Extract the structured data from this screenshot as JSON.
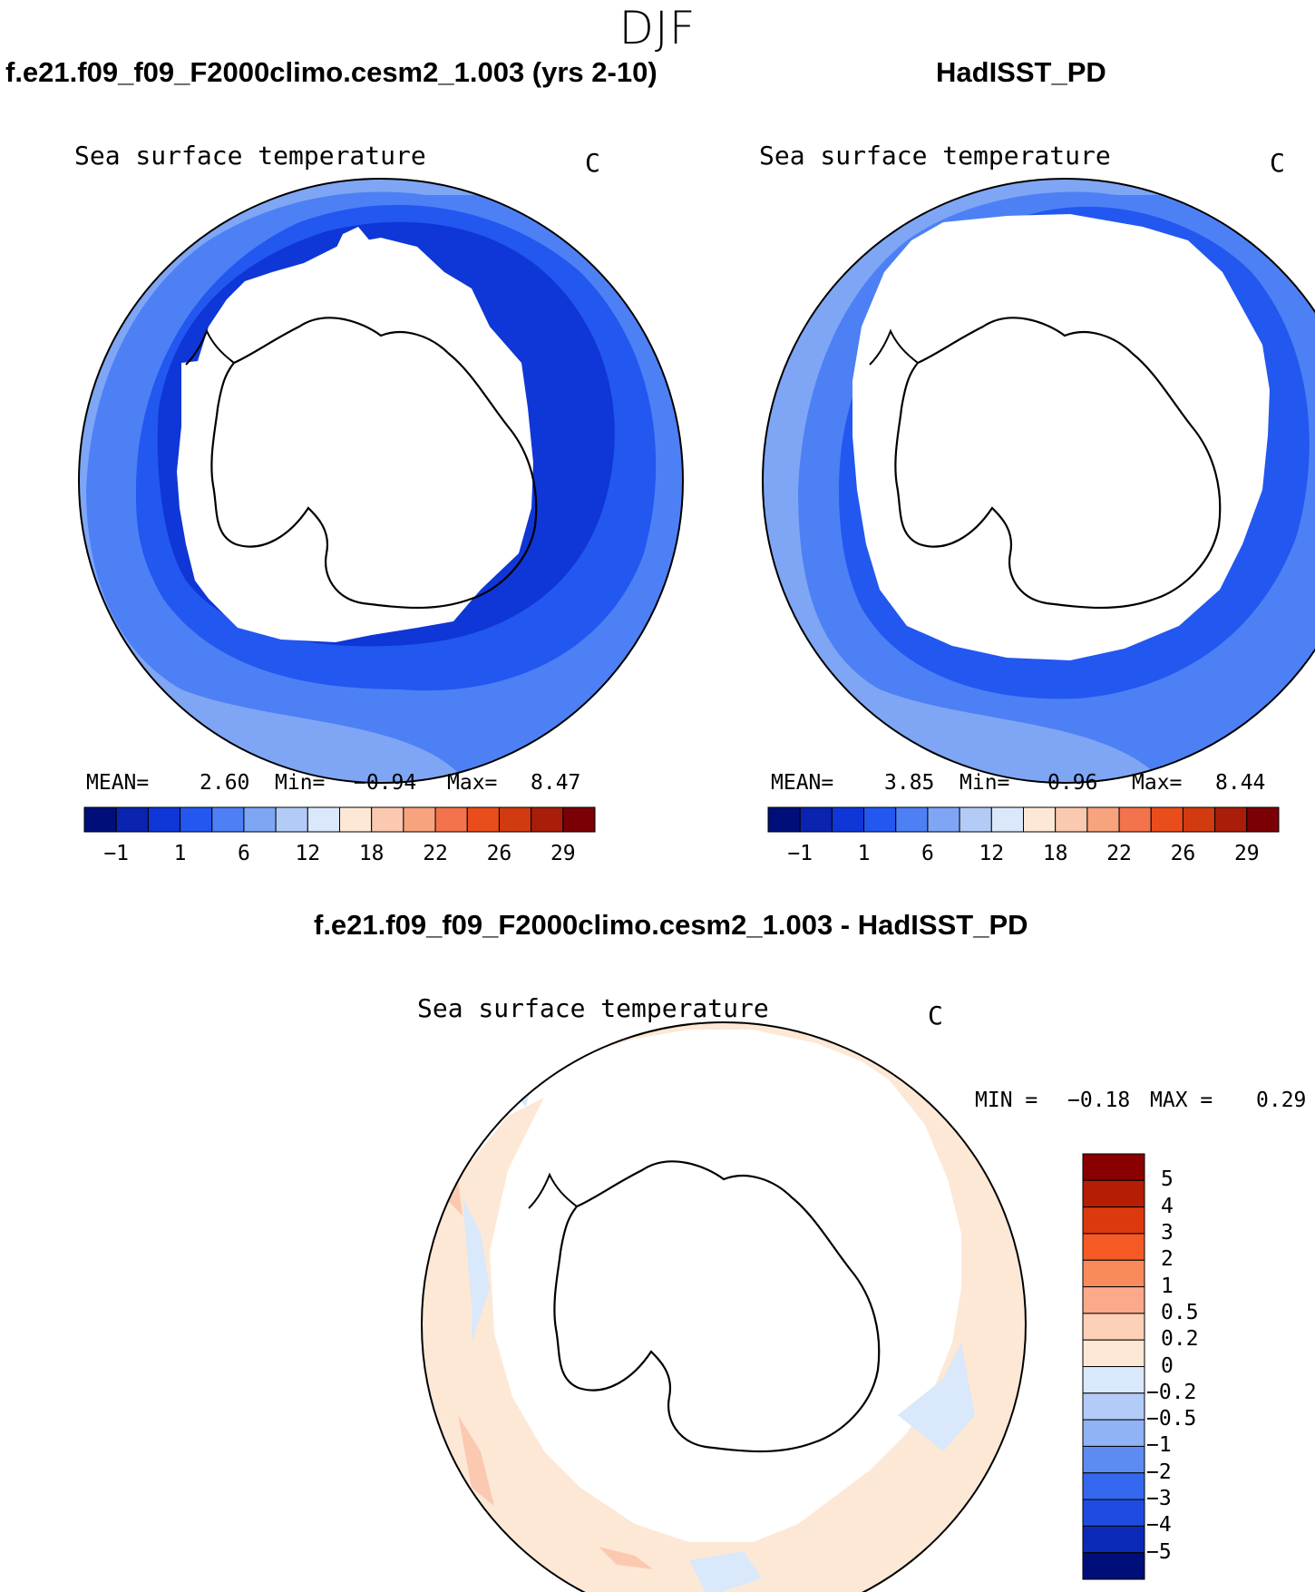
{
  "season": "DJF",
  "panels": {
    "test": {
      "title": "f.e21.f09_f09_F2000climo.cesm2_1.003 (yrs 2-10)",
      "variable": "Sea surface temperature",
      "units": "C",
      "stats": {
        "mean_label": "MEAN=",
        "mean": "2.60",
        "min_label": "Min=",
        "min": "−0.94",
        "max_label": "Max=",
        "max": "8.47"
      }
    },
    "obs": {
      "title": "HadISST_PD",
      "variable": "Sea surface temperature",
      "units": "C",
      "stats": {
        "mean_label": "MEAN=",
        "mean": "3.85",
        "min_label": "Min=",
        "min": "0.96",
        "max_label": "Max=",
        "max": "8.44"
      }
    },
    "diff": {
      "title": "f.e21.f09_f09_F2000climo.cesm2_1.003 - HadISST_PD",
      "variable": "Sea surface temperature",
      "units": "C",
      "stats": {
        "min_label": "MIN =",
        "min": "−0.18",
        "max_label": "MAX =",
        "max": "0.29"
      }
    }
  },
  "colorbars": {
    "sst": {
      "colors": [
        "#000e7a",
        "#0a24b0",
        "#0f36d6",
        "#2257f0",
        "#4d80f5",
        "#7fa6f5",
        "#b3cbf7",
        "#d9e8fa",
        "#fde8d6",
        "#fbc9b0",
        "#f7a37d",
        "#f2734c",
        "#ea4d1c",
        "#d23a10",
        "#a91e09",
        "#7a0006"
      ],
      "tick_labels": [
        "−1",
        "1",
        "6",
        "12",
        "18",
        "22",
        "26",
        "29"
      ]
    },
    "diff": {
      "colors_top_to_bottom": [
        "#8a0000",
        "#b51d05",
        "#dc3a0e",
        "#f55a24",
        "#f98a5c",
        "#fba98a",
        "#fdd0b8",
        "#fde8d6",
        "#d9e8fa",
        "#b3cbf7",
        "#8fb3f5",
        "#5d8bf2",
        "#3568ee",
        "#1f4ce0",
        "#0c2ab8",
        "#000e7a"
      ],
      "tick_labels": [
        "5",
        "4",
        "3",
        "2",
        "1",
        "0.5",
        "0.2",
        "0",
        "−0.2",
        "−0.5",
        "−1",
        "−2",
        "−3",
        "−4",
        "−5"
      ]
    }
  }
}
